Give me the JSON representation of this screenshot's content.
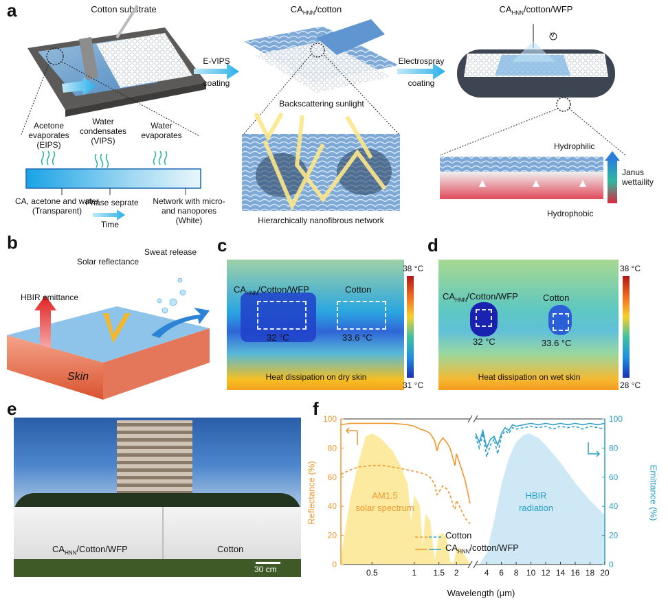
{
  "panel_labels": {
    "a": "a",
    "b": "b",
    "c": "c",
    "d": "d",
    "e": "e",
    "f": "f"
  },
  "panel_a": {
    "title_substrate": "Cotton substrate",
    "title_ca_cotton_main": "CA",
    "title_ca_cotton_sub": "HNN",
    "title_ca_cotton_tail": "/cotton",
    "title_wfp_main": "CA",
    "title_wfp_sub": "HNN",
    "title_wfp_tail": "/cotton/WFP",
    "step1_top": "E-VIPS",
    "step1_bottom": "coating",
    "step2_top": "Electrospray",
    "step2_bottom": "coating",
    "volt_symbol": "V",
    "evap_acetone": "Acetone evaporates (EIPS)",
    "water_condensates": "Water condensates (VIPS)",
    "water_evaporates": "Water evaporates",
    "label_ca": "CA, acetone and water (Transparent)",
    "label_phase": "Phase seprate",
    "label_time": "Time",
    "label_network": "Network with micro- and nanopores (White)",
    "backscatter": "Backscattering sunlight",
    "network_caption": "Hierarchically nanofibrous network",
    "hydrophilic": "Hydrophilic",
    "hydrophobic": "Hydrophobic",
    "janus": "Janus wettaility"
  },
  "panel_b": {
    "hbir": "HBIR emittance",
    "solar": "Solar reflectance",
    "sweat": "Sweat release",
    "skin": "Skin"
  },
  "panel_c": {
    "label_left_main": "CA",
    "label_left_sub": "HNN",
    "label_left_tail": "/Cotton/WFP",
    "label_right": "Cotton",
    "temp_left": "32 °C",
    "temp_right": "33.6 °C",
    "caption": "Heat dissipation on dry skin",
    "scale_max": "38 °C",
    "scale_min": "31 °C"
  },
  "panel_d": {
    "label_left_main": "CA",
    "label_left_sub": "HNN",
    "label_left_tail": "/Cotton/WFP",
    "label_right": "Cotton",
    "temp_left": "32 °C",
    "temp_right": "33.6 °C",
    "caption": "Heat dissipation on wet skin",
    "scale_max": "38 °C",
    "scale_min": "28 °C"
  },
  "panel_e": {
    "label_left_main": "CA",
    "label_left_sub": "HNN",
    "label_left_tail": "/Cotton/WFP",
    "label_right": "Cotton",
    "scale_bar": "30 cm"
  },
  "chart_data": {
    "type": "line",
    "xlabel": "Wavelength (μm)",
    "ylabel_left": "Reflectance (%)",
    "ylabel_right": "Emittance (%)",
    "ylim": [
      0,
      100
    ],
    "yticks": [
      0,
      20,
      40,
      60,
      80,
      100
    ],
    "x_left_ticks": [
      "0.5",
      "1",
      "1.5",
      "2"
    ],
    "x_right_ticks": [
      "4",
      "6",
      "8",
      "10",
      "12",
      "14",
      "16",
      "18",
      "20"
    ],
    "left_axis_range_um": [
      0.3,
      2.5
    ],
    "right_axis_range_um": [
      2.5,
      20
    ],
    "annotations": {
      "am15": "AM1.5",
      "solar_spectrum": "solar spectrum",
      "hbir": "HBIR",
      "radiation": "radiation"
    },
    "legend": [
      {
        "name": "Cotton",
        "style": "dashed"
      },
      {
        "name_main": "CA",
        "name_sub": "HNN",
        "name_tail": "/cotton/WFP",
        "style": "solid"
      }
    ],
    "series": [
      {
        "key": "reflectance_wfp",
        "axis": "reflectance",
        "color": "#f0962c",
        "dash": false,
        "x": [
          0.3,
          0.35,
          0.4,
          0.5,
          0.6,
          0.7,
          0.8,
          0.9,
          1.0,
          1.1,
          1.2,
          1.3,
          1.4,
          1.45,
          1.5,
          1.6,
          1.7,
          1.8,
          1.9,
          1.95,
          2.0,
          2.1,
          2.2,
          2.3,
          2.4,
          2.5
        ],
        "y": [
          96,
          97,
          97,
          97,
          97,
          97,
          96.5,
          96,
          95,
          93,
          92,
          90,
          85,
          78,
          83,
          87,
          84,
          80,
          72,
          68,
          76,
          70,
          64,
          58,
          50,
          42
        ]
      },
      {
        "key": "reflectance_cotton",
        "axis": "reflectance",
        "color": "#f0962c",
        "dash": true,
        "x": [
          0.3,
          0.35,
          0.4,
          0.5,
          0.6,
          0.7,
          0.8,
          0.9,
          1.0,
          1.1,
          1.2,
          1.3,
          1.4,
          1.45,
          1.5,
          1.6,
          1.7,
          1.8,
          1.9,
          1.95,
          2.0,
          2.1,
          2.2,
          2.3,
          2.4,
          2.5
        ],
        "y": [
          62,
          65,
          67,
          68,
          68,
          67,
          66,
          65,
          64,
          63,
          62,
          60,
          55,
          48,
          50,
          54,
          52,
          48,
          40,
          38,
          44,
          40,
          36,
          32,
          30,
          28
        ]
      },
      {
        "key": "emittance_wfp",
        "axis": "emittance",
        "color": "#2a9fc9",
        "dash": false,
        "x": [
          2.5,
          3.0,
          3.5,
          4.0,
          4.5,
          5.0,
          5.5,
          6.0,
          6.5,
          7.0,
          7.5,
          8.0,
          9.0,
          10.0,
          11.0,
          12.0,
          13.0,
          14.0,
          15.0,
          16.0,
          17.0,
          18.0,
          19.0,
          20.0
        ],
        "y": [
          90,
          84,
          92,
          80,
          86,
          88,
          82,
          90,
          94,
          92,
          96,
          95,
          96,
          97,
          96,
          97,
          96,
          97,
          96,
          97,
          96,
          97,
          96,
          97
        ]
      },
      {
        "key": "emittance_cotton",
        "axis": "emittance",
        "color": "#2a9fc9",
        "dash": true,
        "x": [
          2.5,
          3.0,
          3.5,
          4.0,
          4.5,
          5.0,
          5.5,
          6.0,
          6.5,
          7.0,
          7.5,
          8.0,
          9.0,
          10.0,
          11.0,
          12.0,
          13.0,
          14.0,
          15.0,
          16.0,
          17.0,
          18.0,
          19.0,
          20.0
        ],
        "y": [
          88,
          80,
          90,
          74,
          82,
          86,
          76,
          88,
          92,
          90,
          94,
          93,
          94,
          95,
          94,
          95,
          93,
          95,
          94,
          95,
          93,
          95,
          94,
          93
        ]
      }
    ],
    "solar_spectrum_x": [
      0.3,
      0.35,
      0.4,
      0.45,
      0.5,
      0.55,
      0.6,
      0.7,
      0.8,
      0.9,
      0.95,
      1.0,
      1.1,
      1.15,
      1.2,
      1.3,
      1.4,
      1.5,
      1.6,
      1.7,
      1.8,
      1.9,
      2.0,
      2.1,
      2.2,
      2.3,
      2.4,
      2.5
    ],
    "solar_spectrum_y": [
      5,
      45,
      70,
      88,
      90,
      88,
      85,
      78,
      68,
      55,
      30,
      48,
      40,
      12,
      35,
      30,
      3,
      20,
      22,
      18,
      2,
      1,
      10,
      12,
      9,
      6,
      3,
      1
    ],
    "hbir_x": [
      3,
      4,
      5,
      6,
      7,
      8,
      9,
      9.7,
      10,
      11,
      12,
      13,
      14,
      15,
      16,
      17,
      18,
      19,
      20
    ],
    "hbir_y": [
      0,
      8,
      30,
      55,
      73,
      84,
      89,
      90,
      89.5,
      87,
      82,
      76,
      70,
      63,
      56,
      50,
      44,
      39,
      34
    ]
  },
  "colors": {
    "orange": "#f0962c",
    "blue": "#2a9fc9",
    "solar_fill": "#fbeaa0",
    "hbir_fill": "#cfe8f5"
  }
}
